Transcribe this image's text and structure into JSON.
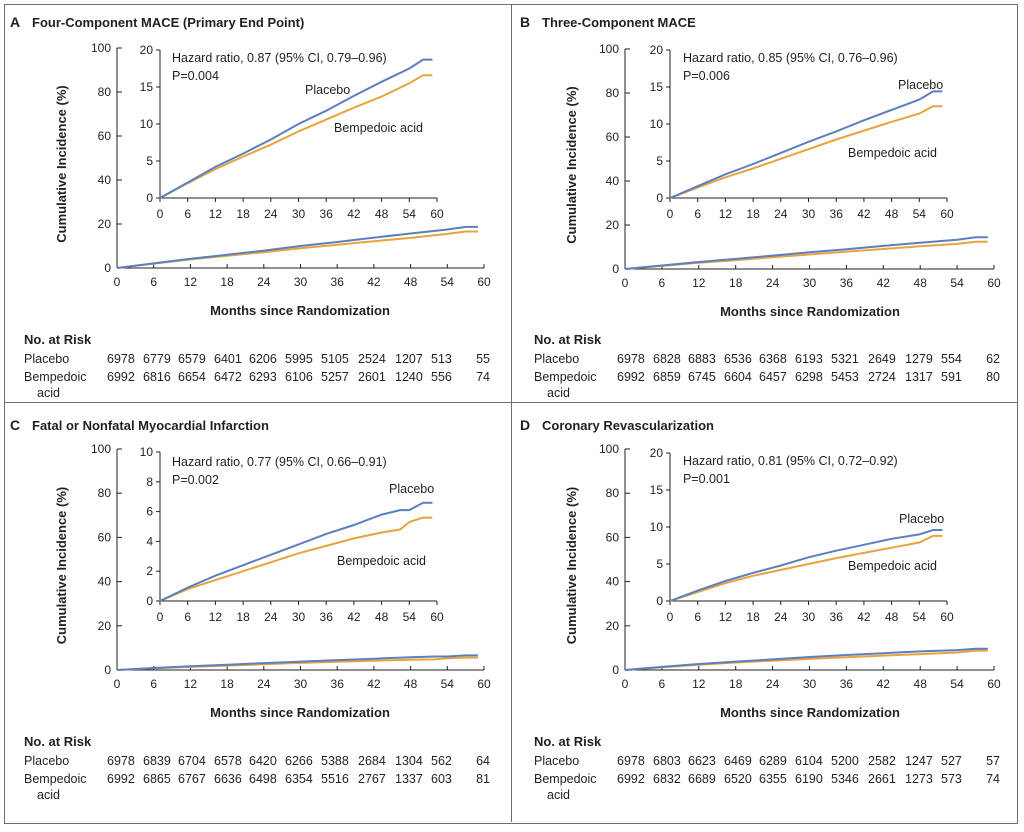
{
  "chart_data": [
    {
      "type": "line",
      "panel_letter": "A",
      "title": "Four-Component MACE (Primary End Point)",
      "xlabel": "Months since Randomization",
      "ylabel": "Cumulative Incidence (%)",
      "xlim": [
        0,
        60
      ],
      "ylim": [
        0,
        100
      ],
      "x_ticks": [
        0,
        6,
        12,
        18,
        24,
        30,
        36,
        42,
        48,
        54,
        60
      ],
      "y_ticks": [
        0,
        20,
        40,
        60,
        80,
        100
      ],
      "inset": {
        "xlim": [
          0,
          60
        ],
        "ylim": [
          0,
          20
        ],
        "x_ticks": [
          0,
          6,
          12,
          18,
          24,
          30,
          36,
          42,
          48,
          54,
          60
        ],
        "y_ticks": [
          0,
          5,
          10,
          15,
          20
        ],
        "hazard_ratio": "Hazard ratio, 0.87 (95% CI, 0.79–0.96)",
        "p_value": "P=0.004",
        "placebo_label": "Placebo",
        "bempedoic_label": "Bempedoic acid"
      },
      "series": [
        {
          "name": "Placebo",
          "color": "#5b7fbf",
          "x": [
            0,
            6,
            12,
            18,
            24,
            30,
            36,
            42,
            48,
            54,
            57,
            59
          ],
          "y": [
            0,
            2.1,
            4.2,
            6.0,
            7.9,
            10.0,
            11.8,
            13.8,
            15.7,
            17.5,
            18.7,
            18.7
          ]
        },
        {
          "name": "Bempedoic acid",
          "color": "#e8a33d",
          "x": [
            0,
            6,
            12,
            18,
            24,
            30,
            36,
            42,
            48,
            54,
            57,
            59
          ],
          "y": [
            0,
            2.0,
            3.9,
            5.6,
            7.2,
            9.0,
            10.6,
            12.2,
            13.7,
            15.5,
            16.6,
            16.6
          ]
        }
      ],
      "risk_table": {
        "title": "No. at Risk",
        "placebo_label": "Placebo",
        "bempedoic_label_1": "Bempedoic",
        "bempedoic_label_2": "acid",
        "placebo": [
          "6978",
          "6779",
          "6579",
          "6401",
          "6206",
          "5995",
          "5105",
          "2524",
          "1207",
          "513",
          "55"
        ],
        "bempedoic": [
          "6992",
          "6816",
          "6654",
          "6472",
          "6293",
          "6106",
          "5257",
          "2601",
          "1240",
          "556",
          "74"
        ]
      }
    },
    {
      "type": "line",
      "panel_letter": "B",
      "title": "Three-Component MACE",
      "xlabel": "Months since Randomization",
      "ylabel": "Cumulative Incidence (%)",
      "xlim": [
        0,
        60
      ],
      "ylim": [
        0,
        100
      ],
      "x_ticks": [
        0,
        6,
        12,
        18,
        24,
        30,
        36,
        42,
        48,
        54,
        60
      ],
      "y_ticks": [
        0,
        20,
        40,
        60,
        80,
        100
      ],
      "inset": {
        "xlim": [
          0,
          60
        ],
        "ylim": [
          0,
          20
        ],
        "x_ticks": [
          0,
          6,
          12,
          18,
          24,
          30,
          36,
          42,
          48,
          54,
          60
        ],
        "y_ticks": [
          0,
          5,
          10,
          15,
          20
        ],
        "hazard_ratio": "Hazard ratio, 0.85 (95% CI, 0.76–0.96)",
        "p_value": "P=0.006",
        "placebo_label": "Placebo",
        "bempedoic_label": "Bempedoic acid"
      },
      "series": [
        {
          "name": "Placebo",
          "color": "#5b7fbf",
          "x": [
            0,
            6,
            12,
            18,
            24,
            30,
            36,
            42,
            48,
            54,
            57,
            59
          ],
          "y": [
            0,
            1.6,
            3.2,
            4.6,
            6.1,
            7.6,
            9.0,
            10.5,
            11.9,
            13.3,
            14.4,
            14.4
          ]
        },
        {
          "name": "Bempedoic acid",
          "color": "#e8a33d",
          "x": [
            0,
            6,
            12,
            18,
            24,
            30,
            36,
            42,
            48,
            54,
            57,
            59
          ],
          "y": [
            0,
            1.4,
            2.8,
            4.0,
            5.3,
            6.6,
            7.9,
            9.1,
            10.3,
            11.4,
            12.4,
            12.4
          ]
        }
      ],
      "risk_table": {
        "title": "No. at Risk",
        "placebo_label": "Placebo",
        "bempedoic_label_1": "Bempedoic",
        "bempedoic_label_2": "acid",
        "placebo": [
          "6978",
          "6828",
          "6883",
          "6536",
          "6368",
          "6193",
          "5321",
          "2649",
          "1279",
          "554",
          "62"
        ],
        "bempedoic": [
          "6992",
          "6859",
          "6745",
          "6604",
          "6457",
          "6298",
          "5453",
          "2724",
          "1317",
          "591",
          "80"
        ]
      }
    },
    {
      "type": "line",
      "panel_letter": "C",
      "title": "Fatal or Nonfatal Myocardial Infarction",
      "xlabel": "Months since Randomization",
      "ylabel": "Cumulative Incidence (%)",
      "xlim": [
        0,
        60
      ],
      "ylim": [
        0,
        100
      ],
      "x_ticks": [
        0,
        6,
        12,
        18,
        24,
        30,
        36,
        42,
        48,
        54,
        60
      ],
      "y_ticks": [
        0,
        20,
        40,
        60,
        80,
        100
      ],
      "inset": {
        "xlim": [
          0,
          60
        ],
        "ylim": [
          0,
          10
        ],
        "x_ticks": [
          0,
          6,
          12,
          18,
          24,
          30,
          36,
          42,
          48,
          54,
          60
        ],
        "y_ticks": [
          0,
          2,
          4,
          6,
          8,
          10
        ],
        "hazard_ratio": "Hazard ratio, 0.77 (95% CI, 0.66–0.91)",
        "p_value": "P=0.002",
        "placebo_label": "Placebo",
        "bempedoic_label": "Bempedoic acid"
      },
      "series": [
        {
          "name": "Placebo",
          "color": "#5b7fbf",
          "x": [
            0,
            6,
            12,
            18,
            24,
            30,
            36,
            42,
            48,
            52,
            54,
            57,
            59
          ],
          "y": [
            0,
            0.9,
            1.7,
            2.4,
            3.1,
            3.8,
            4.5,
            5.1,
            5.8,
            6.1,
            6.1,
            6.6,
            6.6
          ]
        },
        {
          "name": "Bempedoic acid",
          "color": "#e8a33d",
          "x": [
            0,
            6,
            12,
            18,
            24,
            30,
            36,
            42,
            48,
            52,
            54,
            57,
            59
          ],
          "y": [
            0,
            0.8,
            1.4,
            2.0,
            2.6,
            3.2,
            3.7,
            4.2,
            4.6,
            4.8,
            5.3,
            5.6,
            5.6
          ]
        }
      ],
      "risk_table": {
        "title": "No. at Risk",
        "placebo_label": "Placebo",
        "bempedoic_label_1": "Bempedoic",
        "bempedoic_label_2": "acid",
        "placebo": [
          "6978",
          "6839",
          "6704",
          "6578",
          "6420",
          "6266",
          "5388",
          "2684",
          "1304",
          "562",
          "64"
        ],
        "bempedoic": [
          "6992",
          "6865",
          "6767",
          "6636",
          "6498",
          "6354",
          "5516",
          "2767",
          "1337",
          "603",
          "81"
        ]
      }
    },
    {
      "type": "line",
      "panel_letter": "D",
      "title": "Coronary Revascularization",
      "xlabel": "Months since Randomization",
      "ylabel": "Cumulative Incidence (%)",
      "xlim": [
        0,
        60
      ],
      "ylim": [
        0,
        100
      ],
      "x_ticks": [
        0,
        6,
        12,
        18,
        24,
        30,
        36,
        42,
        48,
        54,
        60
      ],
      "y_ticks": [
        0,
        20,
        40,
        60,
        80,
        100
      ],
      "inset": {
        "xlim": [
          0,
          60
        ],
        "ylim": [
          0,
          20
        ],
        "x_ticks": [
          0,
          6,
          12,
          18,
          24,
          30,
          36,
          42,
          48,
          54,
          60
        ],
        "y_ticks": [
          0,
          5,
          10,
          15,
          20
        ],
        "hazard_ratio": "Hazard ratio, 0.81 (95% CI, 0.72–0.92)",
        "p_value": "P=0.001",
        "placebo_label": "Placebo",
        "bempedoic_label": "Bempedoic acid"
      },
      "series": [
        {
          "name": "Placebo",
          "color": "#5b7fbf",
          "x": [
            0,
            6,
            12,
            18,
            24,
            30,
            36,
            42,
            48,
            54,
            57,
            59
          ],
          "y": [
            0,
            1.4,
            2.7,
            3.8,
            4.8,
            5.9,
            6.8,
            7.6,
            8.4,
            9.0,
            9.6,
            9.6
          ]
        },
        {
          "name": "Bempedoic acid",
          "color": "#e8a33d",
          "x": [
            0,
            6,
            12,
            18,
            24,
            30,
            36,
            42,
            48,
            54,
            57,
            59
          ],
          "y": [
            0,
            1.2,
            2.4,
            3.4,
            4.2,
            5.0,
            5.8,
            6.5,
            7.2,
            7.9,
            8.8,
            8.8
          ]
        }
      ],
      "risk_table": {
        "title": "No. at Risk",
        "placebo_label": "Placebo",
        "bempedoic_label_1": "Bempedoic",
        "bempedoic_label_2": "acid",
        "placebo": [
          "6978",
          "6803",
          "6623",
          "6469",
          "6289",
          "6104",
          "5200",
          "2582",
          "1247",
          "527",
          "57"
        ],
        "bempedoic": [
          "6992",
          "6832",
          "6689",
          "6520",
          "6355",
          "6190",
          "5346",
          "2661",
          "1273",
          "573",
          "74"
        ]
      }
    }
  ]
}
